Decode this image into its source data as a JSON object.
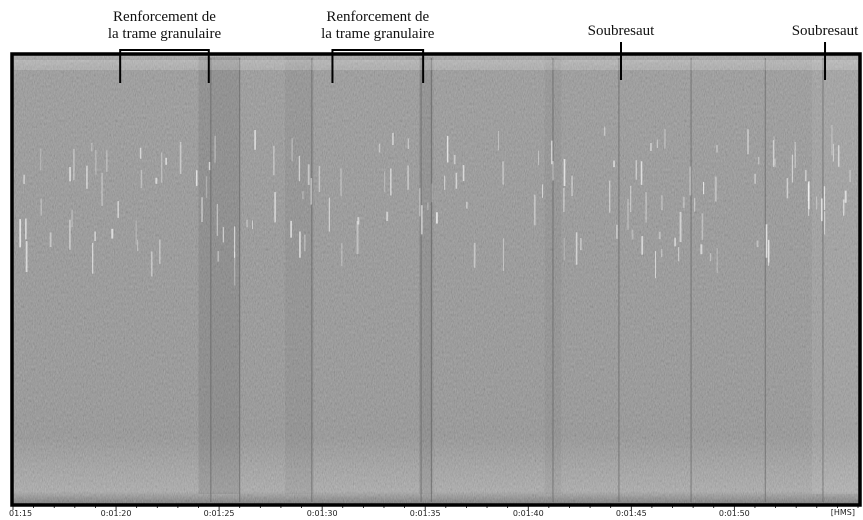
{
  "chart_data": {
    "type": "heatmap",
    "title": "",
    "xlabel": "",
    "ylabel": "",
    "x_unit_label": "[HMS]",
    "xlim": [
      75,
      116
    ],
    "x_ticks": [
      {
        "value": 75,
        "label": "01:15"
      },
      {
        "value": 80,
        "label": "0:01:20"
      },
      {
        "value": 85,
        "label": "0:01:25"
      },
      {
        "value": 90,
        "label": "0:01:30"
      },
      {
        "value": 95,
        "label": "0:01:35"
      },
      {
        "value": 100,
        "label": "0:01:40"
      },
      {
        "value": 105,
        "label": "0:01:45"
      },
      {
        "value": 110,
        "label": "0:01:50"
      }
    ],
    "annotations": [
      {
        "type": "bracket",
        "lines": [
          "Renforcement de",
          "la trame granulaire"
        ],
        "x_start": 80.2,
        "x_end": 84.5
      },
      {
        "type": "bracket",
        "lines": [
          "Renforcement de",
          "la trame granulaire"
        ],
        "x_start": 90.5,
        "x_end": 94.9
      },
      {
        "type": "marker",
        "lines": [
          "Soubresaut"
        ],
        "x": 104.5
      },
      {
        "type": "marker",
        "lines": [
          "Soubresaut"
        ],
        "x": 114.4
      }
    ],
    "colors": {
      "background": "#8e8e8e",
      "frame": "#000000",
      "ink": "#111111"
    }
  }
}
